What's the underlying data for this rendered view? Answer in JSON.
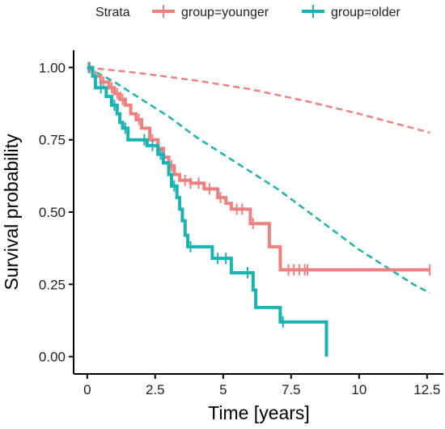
{
  "chart_data": {
    "type": "line",
    "title": "",
    "xlabel": "Time [years]",
    "ylabel": "Survival probability",
    "xlim": [
      -0.5,
      13.1
    ],
    "ylim": [
      -0.06,
      1.06
    ],
    "x_ticks": [
      0,
      2.5,
      5,
      7.5,
      10,
      12.5
    ],
    "x_tick_labels": [
      "0",
      "2.5",
      "5",
      "7.5",
      "10",
      "12.5"
    ],
    "y_ticks": [
      0,
      0.25,
      0.5,
      0.75,
      1.0
    ],
    "y_tick_labels": [
      "0.00",
      "0.25",
      "0.50",
      "0.75",
      "1.00"
    ],
    "grid": false,
    "legend": {
      "position": "top",
      "title": "Strata",
      "entries": [
        "group=younger",
        "group=older"
      ]
    },
    "series": [
      {
        "name": "group=younger",
        "kind": "step",
        "color": "#f08080",
        "points": [
          [
            0,
            1.0
          ],
          [
            0.2,
            0.97
          ],
          [
            0.5,
            0.95
          ],
          [
            0.8,
            0.93
          ],
          [
            1.0,
            0.91
          ],
          [
            1.2,
            0.89
          ],
          [
            1.4,
            0.87
          ],
          [
            1.6,
            0.84
          ],
          [
            1.8,
            0.82
          ],
          [
            2.0,
            0.79
          ],
          [
            2.3,
            0.75
          ],
          [
            2.6,
            0.72
          ],
          [
            2.8,
            0.69
          ],
          [
            3.0,
            0.66
          ],
          [
            3.2,
            0.63
          ],
          [
            3.4,
            0.61
          ],
          [
            3.8,
            0.6
          ],
          [
            4.3,
            0.58
          ],
          [
            4.8,
            0.55
          ],
          [
            5.1,
            0.53
          ],
          [
            5.3,
            0.51
          ],
          [
            6.0,
            0.46
          ],
          [
            6.7,
            0.38
          ],
          [
            7.1,
            0.3
          ],
          [
            12.6,
            0.3
          ]
        ],
        "censor_x": [
          0.1,
          0.3,
          0.6,
          0.9,
          1.1,
          1.3,
          1.9,
          2.4,
          3.1,
          3.6,
          3.8,
          4.1,
          4.5,
          4.9,
          5.5,
          5.7,
          6.1,
          7.4,
          7.6,
          7.8,
          8.0,
          8.1,
          12.6
        ]
      },
      {
        "name": "group=older",
        "kind": "step",
        "color": "#1ab3b3",
        "points": [
          [
            0,
            1.0
          ],
          [
            0.2,
            0.97
          ],
          [
            0.3,
            0.93
          ],
          [
            0.7,
            0.9
          ],
          [
            0.9,
            0.87
          ],
          [
            1.1,
            0.84
          ],
          [
            1.2,
            0.81
          ],
          [
            1.3,
            0.79
          ],
          [
            1.5,
            0.75
          ],
          [
            2.2,
            0.73
          ],
          [
            2.6,
            0.7
          ],
          [
            2.8,
            0.67
          ],
          [
            3.0,
            0.63
          ],
          [
            3.1,
            0.59
          ],
          [
            3.3,
            0.55
          ],
          [
            3.4,
            0.51
          ],
          [
            3.5,
            0.47
          ],
          [
            3.6,
            0.42
          ],
          [
            3.7,
            0.38
          ],
          [
            4.6,
            0.34
          ],
          [
            5.3,
            0.29
          ],
          [
            6.1,
            0.23
          ],
          [
            6.2,
            0.17
          ],
          [
            7.1,
            0.12
          ],
          [
            8.8,
            0.0
          ]
        ],
        "censor_x": [
          0.05,
          0.5,
          1.0,
          1.4,
          2.1,
          2.4,
          2.7,
          3.2,
          3.8,
          4.8,
          5.1,
          5.9,
          7.2
        ]
      },
      {
        "name": "",
        "kind": "dashed",
        "color": "#f08080",
        "points": [
          [
            0,
            1.0
          ],
          [
            2,
            0.98
          ],
          [
            4,
            0.955
          ],
          [
            6,
            0.925
          ],
          [
            8,
            0.885
          ],
          [
            10,
            0.84
          ],
          [
            12.6,
            0.775
          ]
        ]
      },
      {
        "name": "",
        "kind": "dashed",
        "color": "#1ab3b3",
        "points": [
          [
            0,
            1.0
          ],
          [
            1,
            0.95
          ],
          [
            2,
            0.89
          ],
          [
            3,
            0.83
          ],
          [
            4,
            0.76
          ],
          [
            5,
            0.7
          ],
          [
            6,
            0.64
          ],
          [
            7,
            0.58
          ],
          [
            8,
            0.51
          ],
          [
            9,
            0.44
          ],
          [
            10,
            0.37
          ],
          [
            11,
            0.31
          ],
          [
            12,
            0.25
          ],
          [
            12.6,
            0.22
          ]
        ]
      }
    ]
  }
}
